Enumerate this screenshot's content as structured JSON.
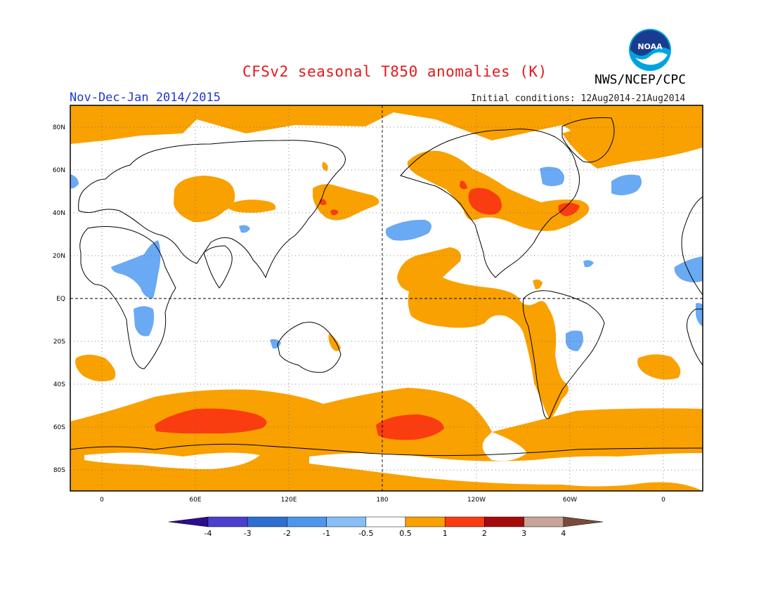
{
  "header": {
    "title": "CFSv2 seasonal T850 anomalies (K)",
    "agency": "NWS/NCEP/CPC",
    "period": "Nov-Dec-Jan 2014/2015",
    "initial_conditions": "Initial conditions: 12Aug2014-21Aug2014",
    "logo_text": "NOAA"
  },
  "map": {
    "lat_labels": [
      "80N",
      "60N",
      "40N",
      "20N",
      "EQ",
      "20S",
      "40S",
      "60S",
      "80S"
    ],
    "lon_labels": [
      "0",
      "60E",
      "120E",
      "180",
      "120W",
      "60W",
      "0"
    ]
  },
  "colorbar": {
    "labels": [
      "-4",
      "-3",
      "-2",
      "-1",
      "-0.5",
      "0.5",
      "1",
      "2",
      "3",
      "4"
    ],
    "colors": [
      "#2b0e8f",
      "#4a3fcf",
      "#2d6ed3",
      "#4d96ec",
      "#86bff5",
      "#ffffff",
      "#f9a100",
      "#fa3c10",
      "#a50a0a",
      "#c7a497",
      "#7a4b3a"
    ]
  },
  "colors": {
    "warm1": "#f9a100",
    "warm2": "#fa3c10",
    "cool1": "#6aa9f3",
    "frame": "#000000"
  }
}
